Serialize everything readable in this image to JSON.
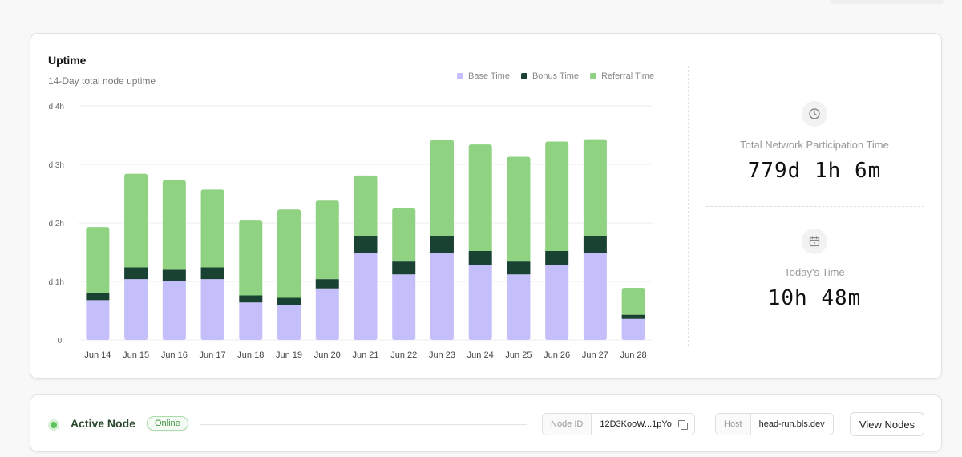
{
  "uptime": {
    "title": "Uptime",
    "subtitle": "14-Day total node uptime",
    "legend": [
      {
        "label": "Base Time",
        "color": "#c4befa"
      },
      {
        "label": "Bonus Time",
        "color": "#1a4232"
      },
      {
        "label": "Referral Time",
        "color": "#8fd282"
      }
    ]
  },
  "chart_data": {
    "type": "bar",
    "stacked": true,
    "title": "Uptime",
    "subtitle": "14-Day total node uptime",
    "categories": [
      "Jun 14",
      "Jun 15",
      "Jun 16",
      "Jun 17",
      "Jun 18",
      "Jun 19",
      "Jun 20",
      "Jun 21",
      "Jun 22",
      "Jun 23",
      "Jun 24",
      "Jun 25",
      "Jun 26",
      "Jun 27",
      "Jun 28"
    ],
    "y_ticks": [
      "0!",
      "d 1h",
      "d 2h",
      "d 3h",
      "d 4h"
    ],
    "ylim": [
      0,
      4
    ],
    "grid": true,
    "legend_position": "top-right",
    "series": [
      {
        "name": "Base Time",
        "color": "#c4befa",
        "values": [
          0.68,
          1.04,
          1.0,
          1.04,
          0.64,
          0.6,
          0.88,
          1.48,
          1.12,
          1.48,
          1.28,
          1.12,
          1.28,
          1.48,
          0.36
        ]
      },
      {
        "name": "Bonus Time",
        "color": "#1a4232",
        "values": [
          0.12,
          0.2,
          0.2,
          0.2,
          0.12,
          0.12,
          0.16,
          0.3,
          0.22,
          0.3,
          0.24,
          0.22,
          0.24,
          0.3,
          0.07
        ]
      },
      {
        "name": "Referral Time",
        "color": "#8fd282",
        "values": [
          1.13,
          1.6,
          1.53,
          1.33,
          1.28,
          1.51,
          1.34,
          1.03,
          0.91,
          1.64,
          1.82,
          1.79,
          1.87,
          1.65,
          0.46
        ]
      }
    ]
  },
  "stats": {
    "total": {
      "label": "Total Network Participation Time",
      "value": "779d 1h 6m",
      "icon": "clock-icon"
    },
    "today": {
      "label": "Today's Time",
      "value": "10h 48m",
      "icon": "calendar-icon"
    }
  },
  "node": {
    "title": "Active Node",
    "status": "Online",
    "status_color": "#5cc25c",
    "node_id_label": "Node ID",
    "node_id_value": "12D3KooW...1pYo",
    "host_label": "Host",
    "host_value": "head-run.bls.dev",
    "view_button": "View Nodes"
  }
}
